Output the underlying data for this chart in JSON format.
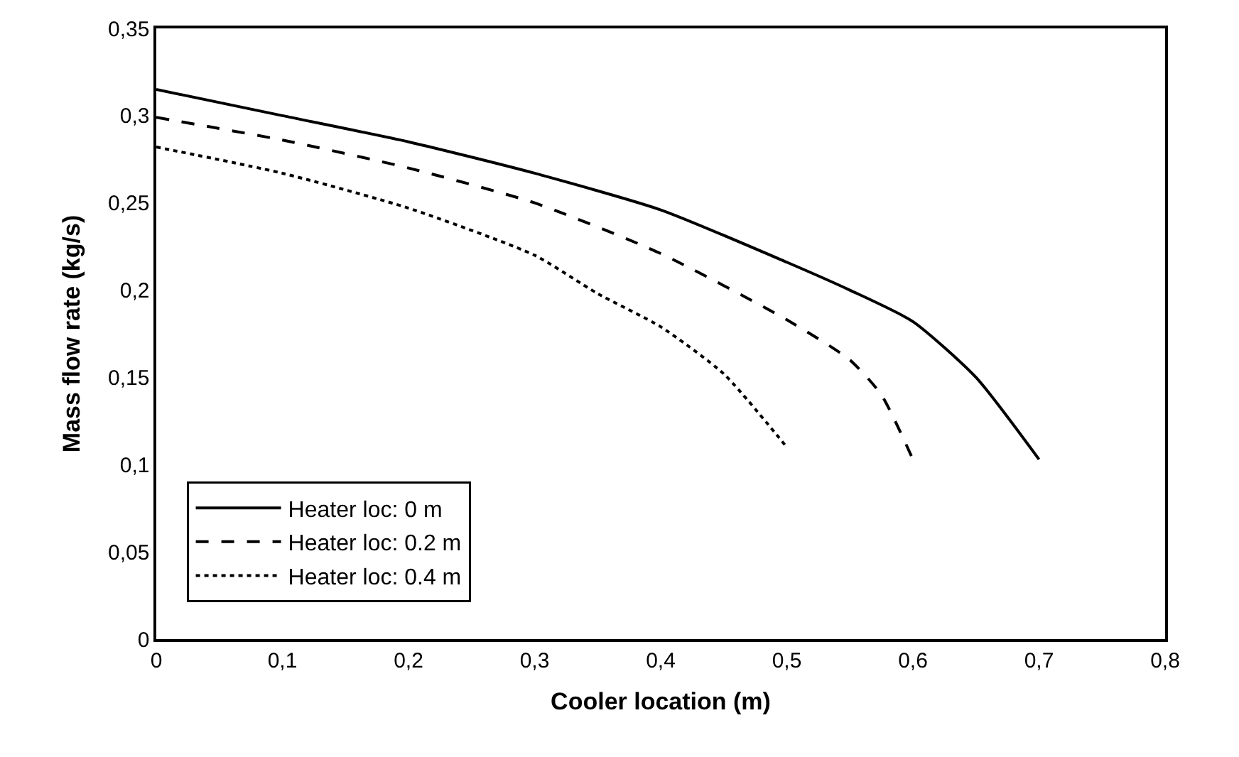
{
  "chart_data": {
    "type": "line",
    "xlabel": "Cooler location (m)",
    "ylabel": "Mass flow rate (kg/s)",
    "xlim": [
      0,
      0.8
    ],
    "xticks": [
      {
        "value": 0,
        "label": "0"
      },
      {
        "value": 0.1,
        "label": "0,1"
      },
      {
        "value": 0.2,
        "label": "0,2"
      },
      {
        "value": 0.3,
        "label": "0,3"
      },
      {
        "value": 0.4,
        "label": "0,4"
      },
      {
        "value": 0.5,
        "label": "0,5"
      },
      {
        "value": 0.6,
        "label": "0,6"
      },
      {
        "value": 0.7,
        "label": "0,7"
      },
      {
        "value": 0.8,
        "label": "0,8"
      }
    ],
    "ylim": [
      0,
      0.35
    ],
    "yticks": [
      {
        "value": 0,
        "label": "0"
      },
      {
        "value": 0.05,
        "label": "0,05"
      },
      {
        "value": 0.1,
        "label": "0,1"
      },
      {
        "value": 0.15,
        "label": "0,15"
      },
      {
        "value": 0.2,
        "label": "0,2"
      },
      {
        "value": 0.25,
        "label": "0,25"
      },
      {
        "value": 0.3,
        "label": "0,3"
      },
      {
        "value": 0.35,
        "label": "0,35"
      }
    ],
    "legend": "bottom left",
    "marker": "none",
    "series": [
      {
        "name": "Heater loc: 0 m",
        "color": "#000000",
        "line_style": "solid",
        "x": [
          0,
          0.1,
          0.2,
          0.3,
          0.4,
          0.5,
          0.55,
          0.6,
          0.65,
          0.7
        ],
        "values": [
          0.315,
          0.3,
          0.285,
          0.267,
          0.246,
          0.216,
          0.2,
          0.182,
          0.15,
          0.103
        ]
      },
      {
        "name": "Heater loc: 0.2 m",
        "color": "#000000",
        "line_style": "dashed",
        "x": [
          0,
          0.1,
          0.2,
          0.3,
          0.4,
          0.5,
          0.55,
          0.575,
          0.6
        ],
        "values": [
          0.299,
          0.286,
          0.27,
          0.25,
          0.221,
          0.183,
          0.16,
          0.14,
          0.103
        ]
      },
      {
        "name": "Heater loc: 0.4 m",
        "color": "#000000",
        "line_style": "dotted",
        "x": [
          0,
          0.1,
          0.2,
          0.3,
          0.35,
          0.4,
          0.45,
          0.5
        ],
        "values": [
          0.282,
          0.267,
          0.247,
          0.22,
          0.198,
          0.179,
          0.152,
          0.11
        ]
      }
    ]
  }
}
